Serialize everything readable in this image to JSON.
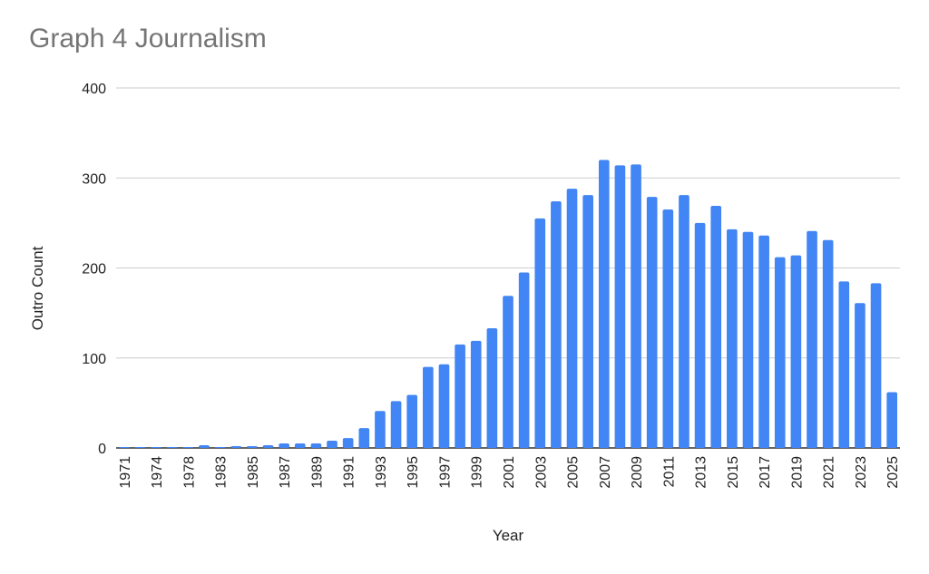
{
  "chart_data": {
    "type": "bar",
    "title": "Graph 4 Journalism",
    "xlabel": "Year",
    "ylabel": "Outro Count",
    "ylim": [
      0,
      400
    ],
    "yticks": [
      "0",
      "100",
      "200",
      "300",
      "400"
    ],
    "grid": true,
    "bar_color": "#4285F4",
    "categories": [
      "1971",
      "1973",
      "1974",
      "1976",
      "1978",
      "1981",
      "1983",
      "1984",
      "1985",
      "1986",
      "1987",
      "1988",
      "1989",
      "1990",
      "1991",
      "1992",
      "1993",
      "1994",
      "1995",
      "1996",
      "1997",
      "1998",
      "1999",
      "2000",
      "2001",
      "2002",
      "2003",
      "2004",
      "2005",
      "2006",
      "2007",
      "2008",
      "2009",
      "2010",
      "2011",
      "2012",
      "2013",
      "2014",
      "2015",
      "2016",
      "2017",
      "2018",
      "2019",
      "2020",
      "2021",
      "2022",
      "2023",
      "2024",
      "2025"
    ],
    "shown_tick_labels": [
      "1971",
      "1974",
      "1978",
      "1983",
      "1985",
      "1987",
      "1989",
      "1991",
      "1993",
      "1995",
      "1997",
      "1999",
      "2001",
      "2003",
      "2005",
      "2007",
      "2009",
      "2011",
      "2013",
      "2015",
      "2017",
      "2019",
      "2021",
      "2023",
      "2025"
    ],
    "values": [
      1,
      1,
      1,
      1,
      1,
      3,
      1,
      2,
      2,
      3,
      5,
      5,
      5,
      8,
      11,
      22,
      41,
      52,
      59,
      90,
      93,
      115,
      119,
      133,
      169,
      195,
      255,
      274,
      288,
      281,
      320,
      314,
      315,
      279,
      265,
      281,
      250,
      269,
      243,
      240,
      236,
      212,
      214,
      241,
      231,
      185,
      161,
      183,
      62
    ]
  }
}
